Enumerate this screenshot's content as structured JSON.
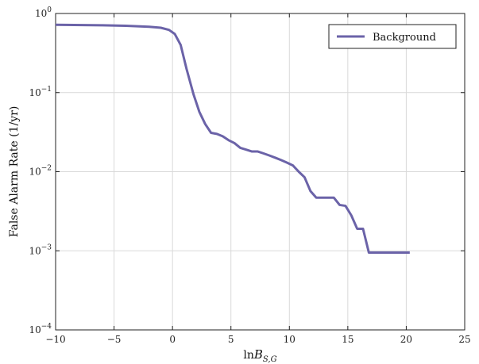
{
  "chart_data": {
    "type": "line",
    "title": "",
    "xlabel": "lnB_{S,G}",
    "xlabel_parts": {
      "prefix": "ln",
      "symbol": "B",
      "subscript": "S,G"
    },
    "ylabel": "False Alarm Rate (1/yr)",
    "xlim": [
      -10,
      25
    ],
    "ylim": [
      0.0001,
      1
    ],
    "yscale": "log",
    "grid": true,
    "legend_position": "top-right",
    "x_ticks": [
      -10,
      -5,
      0,
      5,
      10,
      15,
      20,
      25
    ],
    "x_tick_labels": [
      "−10",
      "−5",
      "0",
      "5",
      "10",
      "15",
      "20",
      "25"
    ],
    "y_ticks": [
      0.0001,
      0.001,
      0.01,
      0.1,
      1
    ],
    "y_tick_labels": [
      {
        "base": "10",
        "exp": "−4"
      },
      {
        "base": "10",
        "exp": "−3"
      },
      {
        "base": "10",
        "exp": "−2"
      },
      {
        "base": "10",
        "exp": "−1"
      },
      {
        "base": "10",
        "exp": "0"
      }
    ],
    "series": [
      {
        "name": "Background",
        "color": "#6b63a8",
        "x": [
          -10,
          -6,
          -4,
          -2,
          -1,
          -0.3,
          0.2,
          0.7,
          1.2,
          1.8,
          2.3,
          2.8,
          3.3,
          3.8,
          4.3,
          4.8,
          5.3,
          5.8,
          6.3,
          6.8,
          7.3,
          7.8,
          8.3,
          8.8,
          9.3,
          9.8,
          10.3,
          10.8,
          11.3,
          11.8,
          12.3,
          12.8,
          13.3,
          13.8,
          14.3,
          14.8,
          15.3,
          15.8,
          16.3,
          16.8,
          17.3,
          17.8,
          20.3
        ],
        "values": [
          0.72,
          0.71,
          0.7,
          0.68,
          0.66,
          0.62,
          0.55,
          0.4,
          0.2,
          0.095,
          0.057,
          0.04,
          0.031,
          0.03,
          0.028,
          0.025,
          0.023,
          0.02,
          0.019,
          0.018,
          0.018,
          0.017,
          0.016,
          0.015,
          0.014,
          0.013,
          0.012,
          0.01,
          0.0085,
          0.0057,
          0.0047,
          0.0047,
          0.0047,
          0.0047,
          0.0038,
          0.0037,
          0.0028,
          0.0019,
          0.0019,
          0.00095,
          0.00095,
          0.00095,
          0.00095
        ]
      }
    ]
  }
}
